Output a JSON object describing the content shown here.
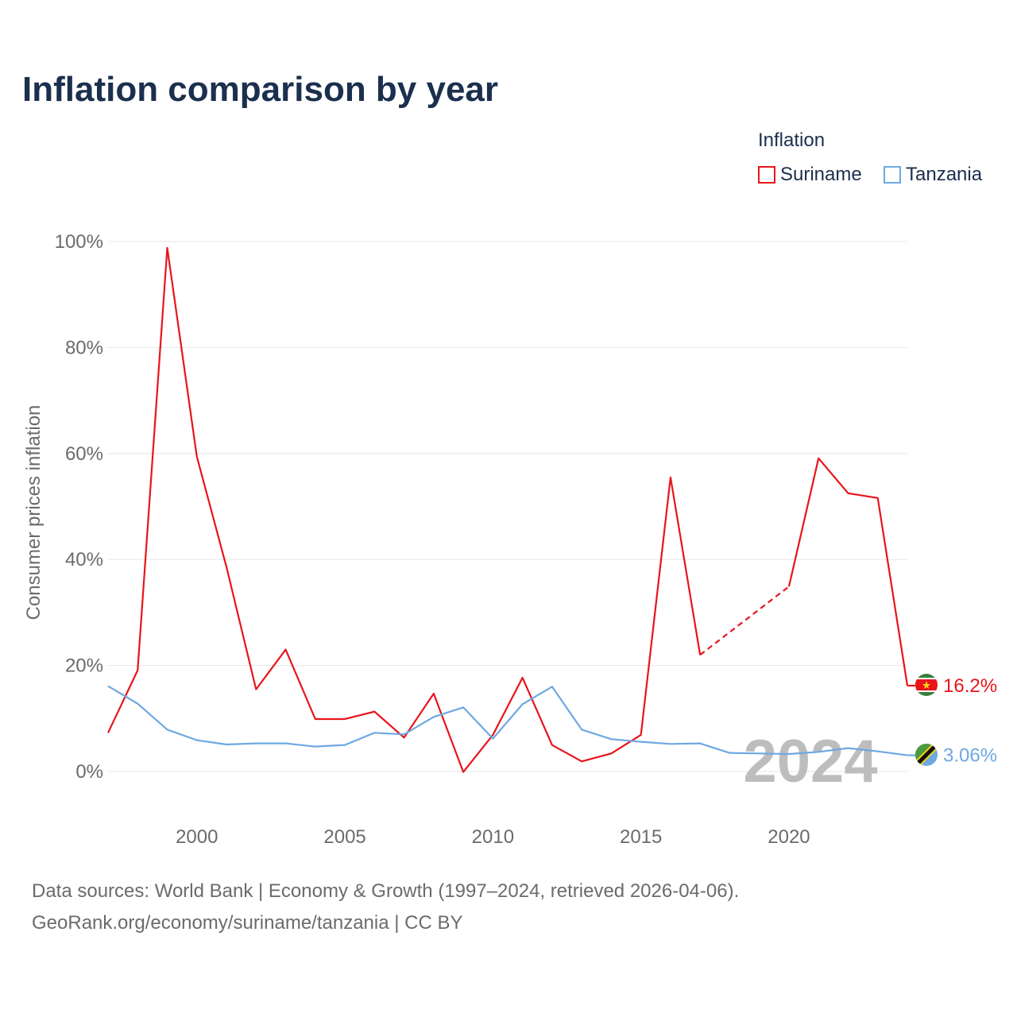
{
  "title": "Inflation comparison by year",
  "legend": {
    "title": "Inflation",
    "items": [
      {
        "label": "Suriname",
        "color": "#e8141c"
      },
      {
        "label": "Tanzania",
        "color": "#6ea8e2"
      }
    ]
  },
  "year_watermark": "2024",
  "footer": {
    "line1": "Data sources: World Bank | Economy & Growth (1997–2024, retrieved 2026-04-06).",
    "line2": "GeoRank.org/economy/suriname/tanzania | CC BY"
  },
  "chart_data": {
    "type": "line",
    "title": "Inflation comparison by year",
    "ylabel": "Consumer prices inflation",
    "xlabel": "",
    "xlim": [
      1997,
      2024
    ],
    "ylim": [
      -6,
      100
    ],
    "y_ticks": [
      0,
      20,
      40,
      60,
      80,
      100
    ],
    "y_tick_labels": [
      "0%",
      "20%",
      "40%",
      "60%",
      "80%",
      "100%"
    ],
    "x_ticks": [
      2000,
      2005,
      2010,
      2015,
      2020
    ],
    "x_tick_labels": [
      "2000",
      "2005",
      "2010",
      "2015",
      "2020"
    ],
    "grid": true,
    "legend_position": "top-right",
    "series": [
      {
        "name": "Suriname",
        "color": "#e8141c",
        "end_label": "16.2%",
        "dashed_gap": [
          2017,
          2020
        ],
        "points": [
          [
            1997,
            7.3
          ],
          [
            1998,
            19.1
          ],
          [
            1999,
            98.8
          ],
          [
            2000,
            59.4
          ],
          [
            2001,
            38.6
          ],
          [
            2002,
            15.5
          ],
          [
            2003,
            23.0
          ],
          [
            2004,
            9.9
          ],
          [
            2005,
            9.9
          ],
          [
            2006,
            11.3
          ],
          [
            2007,
            6.4
          ],
          [
            2008,
            14.7
          ],
          [
            2009,
            -0.1
          ],
          [
            2010,
            6.9
          ],
          [
            2011,
            17.7
          ],
          [
            2012,
            5.0
          ],
          [
            2013,
            1.9
          ],
          [
            2014,
            3.4
          ],
          [
            2015,
            6.9
          ],
          [
            2016,
            55.5
          ],
          [
            2017,
            22.0
          ],
          [
            2020,
            34.9
          ],
          [
            2021,
            59.1
          ],
          [
            2022,
            52.5
          ],
          [
            2023,
            51.6
          ],
          [
            2024,
            16.2
          ]
        ]
      },
      {
        "name": "Tanzania",
        "color": "#6ea8e2",
        "end_label": "3.06%",
        "points": [
          [
            1997,
            16.1
          ],
          [
            1998,
            12.8
          ],
          [
            1999,
            7.9
          ],
          [
            2000,
            5.9
          ],
          [
            2001,
            5.1
          ],
          [
            2002,
            5.3
          ],
          [
            2003,
            5.3
          ],
          [
            2004,
            4.7
          ],
          [
            2005,
            5.0
          ],
          [
            2006,
            7.3
          ],
          [
            2007,
            7.0
          ],
          [
            2008,
            10.3
          ],
          [
            2009,
            12.1
          ],
          [
            2010,
            6.2
          ],
          [
            2011,
            12.7
          ],
          [
            2012,
            16.0
          ],
          [
            2013,
            7.9
          ],
          [
            2014,
            6.1
          ],
          [
            2015,
            5.6
          ],
          [
            2016,
            5.2
          ],
          [
            2017,
            5.3
          ],
          [
            2018,
            3.5
          ],
          [
            2019,
            3.4
          ],
          [
            2020,
            3.3
          ],
          [
            2021,
            3.7
          ],
          [
            2022,
            4.4
          ],
          [
            2023,
            3.8
          ],
          [
            2024,
            3.06
          ]
        ]
      }
    ]
  }
}
